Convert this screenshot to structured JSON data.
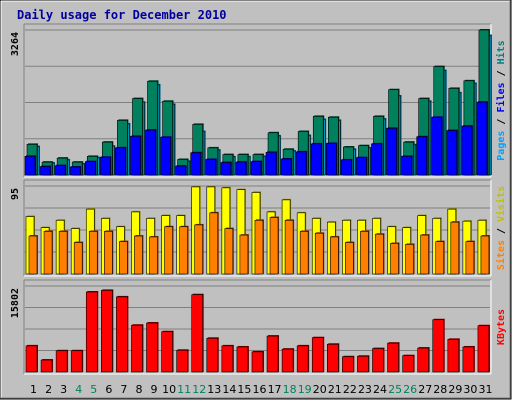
{
  "chart_data": {
    "type": "bar",
    "title": "Daily usage for December 2010",
    "categories": [
      "1",
      "2",
      "3",
      "4",
      "5",
      "6",
      "7",
      "8",
      "9",
      "10",
      "11",
      "12",
      "13",
      "14",
      "15",
      "16",
      "17",
      "18",
      "19",
      "20",
      "21",
      "22",
      "23",
      "24",
      "25",
      "26",
      "27",
      "28",
      "29",
      "30",
      "31"
    ],
    "weekend_days": [
      "4",
      "5",
      "11",
      "12",
      "18",
      "19",
      "25",
      "26"
    ],
    "panels": [
      {
        "id": "pages-files-hits",
        "ymax": 3264,
        "ymax_label": "3264",
        "side_label_parts": [
          "Pages",
          " / ",
          "Files",
          " / ",
          "Hits"
        ],
        "series": [
          {
            "name": "Hits",
            "color": "#00c0ff",
            "values": [
              640,
              270,
              340,
              250,
              390,
              650,
              1150,
              1640,
              2030,
              1590,
              310,
              980,
              560,
              410,
              410,
              420,
              880,
              540,
              890,
              1250,
              1230,
              580,
              610,
              1260,
              1780,
              680,
              1660,
              2350,
              1850,
              2060,
              3140
            ]
          },
          {
            "name": "Files",
            "color": "#00805c",
            "values": [
              690,
              290,
              380,
              290,
              420,
              740,
              1230,
              1720,
              2110,
              1660,
              350,
              1140,
              610,
              460,
              460,
              460,
              950,
              580,
              980,
              1320,
              1300,
              630,
              660,
              1320,
              1920,
              740,
              1720,
              2440,
              1950,
              2120,
              3264
            ]
          },
          {
            "name": "Pages",
            "color": "#0000ff",
            "values": [
              420,
              190,
              210,
              180,
              300,
              400,
              610,
              870,
              1010,
              850,
              200,
              500,
              350,
              280,
              290,
              300,
              510,
              360,
              520,
              700,
              710,
              340,
              390,
              700,
              1050,
              420,
              860,
              1300,
              1000,
              1100,
              1640
            ]
          }
        ]
      },
      {
        "id": "visits-sites",
        "ymax": 95,
        "ymax_label": "95",
        "side_label_parts": [
          "Sites",
          " / ",
          "Visits"
        ],
        "series": [
          {
            "name": "Visits",
            "color": "#ffff00",
            "values": [
              62,
              50,
              58,
              49,
              70,
              60,
              51,
              67,
              60,
              63,
              63,
              94,
              94,
              93,
              91,
              88,
              67,
              80,
              66,
              60,
              56,
              58,
              58,
              60,
              51,
              50,
              63,
              60,
              70,
              57,
              58
            ]
          },
          {
            "name": "Sites",
            "color": "#ff8000",
            "values": [
              41,
              46,
              46,
              34,
              46,
              46,
              35,
              41,
              40,
              51,
              51,
              53,
              66,
              49,
              42,
              58,
              61,
              58,
              46,
              44,
              40,
              34,
              46,
              43,
              33,
              32,
              42,
              35,
              56,
              35,
              41
            ]
          }
        ]
      },
      {
        "id": "kbytes",
        "ymax": 15802,
        "ymax_label": "15802",
        "side_label_parts": [
          "KBytes"
        ],
        "series": [
          {
            "name": "KBytes",
            "color": "#ff0000",
            "values": [
              4800,
              2200,
              3900,
              3900,
              14700,
              15000,
              13800,
              8600,
              9000,
              7400,
              4000,
              14200,
              6200,
              4800,
              4600,
              3700,
              6600,
              4200,
              4800,
              6300,
              5100,
              2800,
              2900,
              4300,
              5300,
              3000,
              4400,
              9600,
              6000,
              4600,
              8500
            ]
          }
        ]
      }
    ]
  },
  "colors": {
    "background": "#c0c0c0",
    "title": "#0000a0",
    "gridline": "#808080",
    "weekday_label": "#000000",
    "weekend_label": "#00805c"
  }
}
